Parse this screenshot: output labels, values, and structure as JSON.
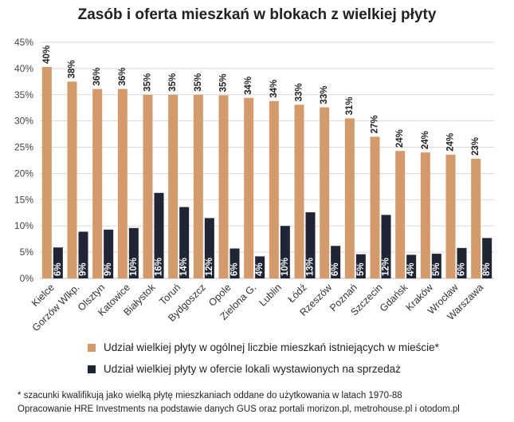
{
  "colors": {
    "stock": "#D49A6A",
    "offer": "#1F2535",
    "grid": "#D9D9D9",
    "axis_text": "#444444"
  },
  "chart_data": {
    "type": "bar",
    "title": "Zasób i oferta mieszkań w blokach z wielkiej płyty",
    "xlabel": "",
    "ylabel": "",
    "ylim": [
      0,
      45
    ],
    "yticks": [
      "0%",
      "5%",
      "10%",
      "15%",
      "20%",
      "25%",
      "30%",
      "35%",
      "40%",
      "45%"
    ],
    "grid": true,
    "legend_position": "bottom",
    "categories": [
      "Kielce",
      "Gorzów Wlkp.",
      "Olsztyn",
      "Katowice",
      "Białystok",
      "Toruń",
      "Bydgoszcz",
      "Opole",
      "Zielona G.",
      "Lublin",
      "Łódź",
      "Rzeszów",
      "Poznań",
      "Szczecin",
      "Gdańsk",
      "Kraków",
      "Wrocław",
      "Warszawa"
    ],
    "series": [
      {
        "name": "Udział wielkiej płyty w ogólnej liczbie mieszkań istniejących w mieście*",
        "values": [
          40.3,
          37.5,
          36.1,
          36.1,
          35.0,
          35.0,
          35.0,
          34.9,
          34.4,
          33.8,
          33.1,
          32.6,
          30.5,
          27.0,
          24.3,
          24.0,
          23.6,
          22.8
        ],
        "labels": [
          "40%",
          "38%",
          "36%",
          "36%",
          "35%",
          "35%",
          "35%",
          "35%",
          "34%",
          "34%",
          "33%",
          "33%",
          "31%",
          "27%",
          "24%",
          "24%",
          "24%",
          "23%"
        ]
      },
      {
        "name": "Udział wielkiej płyty w ofercie lokali wystawionych na sprzedaż",
        "values": [
          5.9,
          8.9,
          9.3,
          9.6,
          16.3,
          13.6,
          11.5,
          5.7,
          4.2,
          10.0,
          12.6,
          6.2,
          4.6,
          12.1,
          4.5,
          4.7,
          5.8,
          7.7
        ],
        "labels": [
          "6%",
          "9%",
          "9%",
          "10%",
          "16%",
          "14%",
          "12%",
          "6%",
          "4%",
          "10%",
          "13%",
          "6%",
          "5%",
          "12%",
          "4%",
          "5%",
          "6%",
          "8%"
        ]
      }
    ]
  },
  "notes": {
    "footnote": "* szacunki kwalifikują jako wielką płytę mieszkaniach oddane do użytkowania w latach 1970-88",
    "source": "Opracowanie HRE Investments na podstawie danych GUS oraz portali morizon.pl, metrohouse.pl i otodom.pl"
  }
}
